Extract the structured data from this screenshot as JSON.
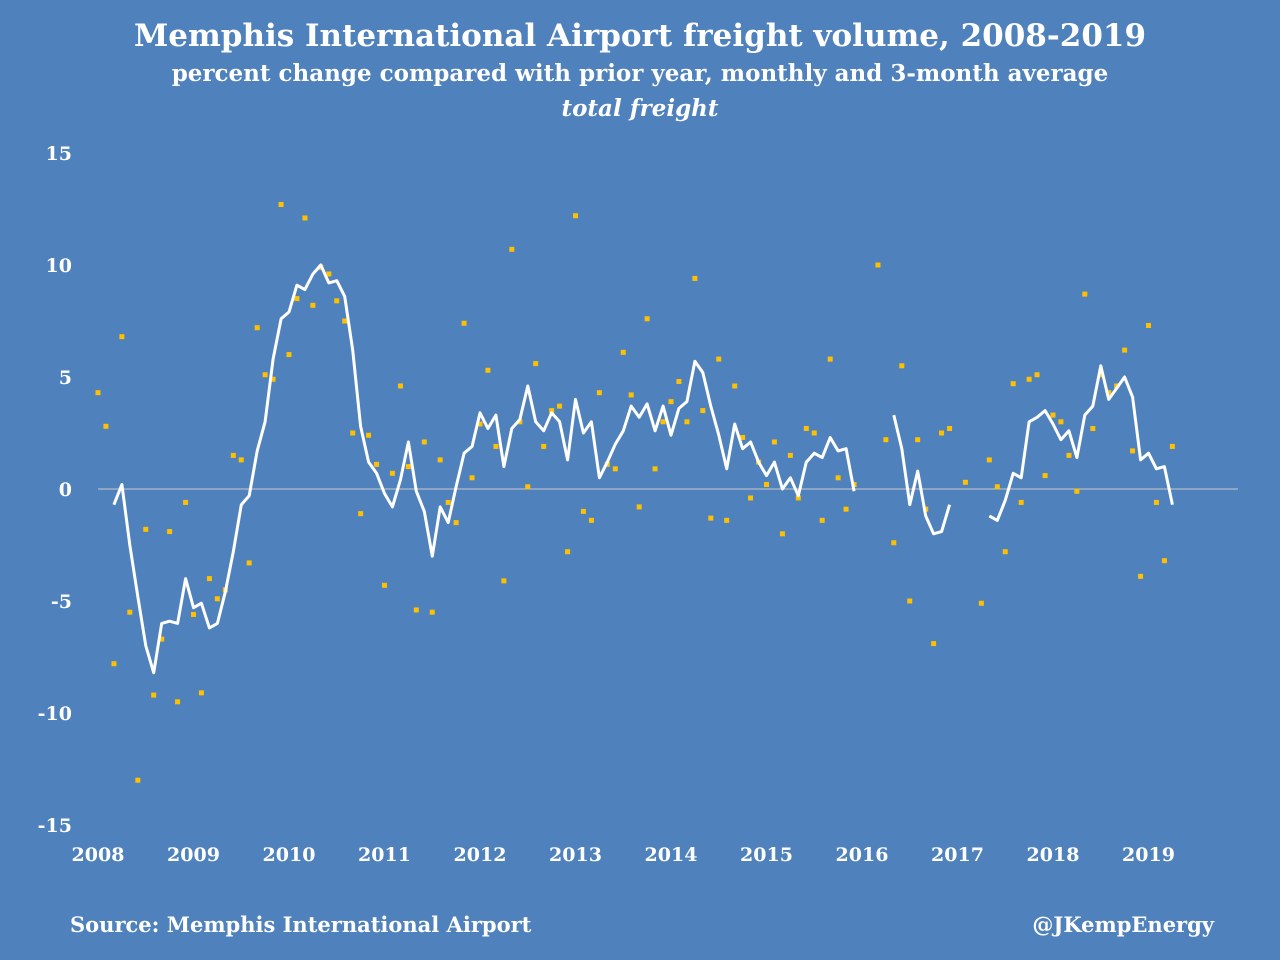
{
  "chart_data": {
    "type": "line",
    "title": "Memphis International Airport freight volume, 2008-2019",
    "subtitle": "percent change compared with prior year, monthly and 3-month average",
    "subtitle2": "total freight",
    "xlabel": "",
    "ylabel": "",
    "x_ticks": [
      "2008",
      "2009",
      "2010",
      "2011",
      "2012",
      "2013",
      "2014",
      "2015",
      "2016",
      "2017",
      "2018",
      "2019"
    ],
    "y_ticks": [
      "15",
      "10",
      "5",
      "0",
      "-5",
      "-10",
      "-15"
    ],
    "xlim": [
      2008,
      2019.75
    ],
    "ylim": [
      -15,
      15
    ],
    "grid": false,
    "colors": {
      "background": "#4f81bd",
      "line": "#ffffff",
      "points": "#ffc000",
      "zero_line": "#c9c9c9"
    },
    "series": [
      {
        "type": "scatter",
        "points": [
          [
            2008.0,
            4.3
          ],
          [
            2008.083,
            2.8
          ],
          [
            2008.167,
            -7.8
          ],
          [
            2008.25,
            6.8
          ],
          [
            2008.333,
            -5.5
          ],
          [
            2008.417,
            -13.0
          ],
          [
            2008.5,
            -1.8
          ],
          [
            2008.583,
            -9.2
          ],
          [
            2008.667,
            -6.7
          ],
          [
            2008.75,
            -1.9
          ],
          [
            2008.833,
            -9.5
          ],
          [
            2008.917,
            -0.6
          ],
          [
            2009.0,
            -5.6
          ],
          [
            2009.083,
            -9.1
          ],
          [
            2009.167,
            -4.0
          ],
          [
            2009.25,
            -4.9
          ],
          [
            2009.333,
            -4.5
          ],
          [
            2009.417,
            1.5
          ],
          [
            2009.5,
            1.3
          ],
          [
            2009.583,
            -3.3
          ],
          [
            2009.667,
            7.2
          ],
          [
            2009.75,
            5.1
          ],
          [
            2009.833,
            4.9
          ],
          [
            2009.917,
            12.7
          ],
          [
            2010.0,
            6.0
          ],
          [
            2010.083,
            8.5
          ],
          [
            2010.167,
            12.1
          ],
          [
            2010.25,
            8.2
          ],
          [
            2010.333,
            9.9
          ],
          [
            2010.417,
            9.6
          ],
          [
            2010.5,
            8.4
          ],
          [
            2010.583,
            7.5
          ],
          [
            2010.667,
            2.5
          ],
          [
            2010.75,
            -1.1
          ],
          [
            2010.833,
            2.4
          ],
          [
            2010.917,
            1.1
          ],
          [
            2011.0,
            -4.3
          ],
          [
            2011.083,
            0.7
          ],
          [
            2011.167,
            4.6
          ],
          [
            2011.25,
            1.0
          ],
          [
            2011.333,
            -5.4
          ],
          [
            2011.417,
            2.1
          ],
          [
            2011.5,
            -5.5
          ],
          [
            2011.583,
            1.3
          ],
          [
            2011.667,
            -0.6
          ],
          [
            2011.75,
            -1.5
          ],
          [
            2011.833,
            7.4
          ],
          [
            2011.917,
            0.5
          ],
          [
            2012.0,
            2.9
          ],
          [
            2012.083,
            5.3
          ],
          [
            2012.167,
            1.9
          ],
          [
            2012.25,
            -4.1
          ],
          [
            2012.333,
            10.7
          ],
          [
            2012.417,
            3.0
          ],
          [
            2012.5,
            0.1
          ],
          [
            2012.583,
            5.6
          ],
          [
            2012.667,
            1.9
          ],
          [
            2012.75,
            3.5
          ],
          [
            2012.833,
            3.7
          ],
          [
            2012.917,
            -2.8
          ],
          [
            2013.0,
            12.2
          ],
          [
            2013.083,
            -1.0
          ],
          [
            2013.167,
            -1.4
          ],
          [
            2013.25,
            4.3
          ],
          [
            2013.333,
            1.1
          ],
          [
            2013.417,
            0.9
          ],
          [
            2013.5,
            6.1
          ],
          [
            2013.583,
            4.2
          ],
          [
            2013.667,
            -0.8
          ],
          [
            2013.75,
            7.6
          ],
          [
            2013.833,
            0.9
          ],
          [
            2013.917,
            3.0
          ],
          [
            2014.0,
            3.9
          ],
          [
            2014.083,
            4.8
          ],
          [
            2014.167,
            3.0
          ],
          [
            2014.25,
            9.4
          ],
          [
            2014.333,
            3.5
          ],
          [
            2014.417,
            -1.3
          ],
          [
            2014.5,
            5.8
          ],
          [
            2014.583,
            -1.4
          ],
          [
            2014.667,
            4.6
          ],
          [
            2014.75,
            2.3
          ],
          [
            2014.833,
            -0.4
          ],
          [
            2014.917,
            1.2
          ],
          [
            2015.0,
            0.2
          ],
          [
            2015.083,
            2.1
          ],
          [
            2015.167,
            -2.0
          ],
          [
            2015.25,
            1.5
          ],
          [
            2015.333,
            -0.4
          ],
          [
            2015.417,
            2.7
          ],
          [
            2015.5,
            2.5
          ],
          [
            2015.583,
            -1.4
          ],
          [
            2015.667,
            5.8
          ],
          [
            2015.75,
            0.5
          ],
          [
            2015.833,
            -0.9
          ],
          [
            2015.917,
            0.2
          ],
          [
            2016.167,
            10.0
          ],
          [
            2016.25,
            2.2
          ],
          [
            2016.333,
            -2.4
          ],
          [
            2016.417,
            5.5
          ],
          [
            2016.5,
            -5.0
          ],
          [
            2016.583,
            2.2
          ],
          [
            2016.667,
            -0.9
          ],
          [
            2016.75,
            -6.9
          ],
          [
            2016.833,
            2.5
          ],
          [
            2016.917,
            2.7
          ],
          [
            2017.083,
            0.3
          ],
          [
            2017.25,
            -5.1
          ],
          [
            2017.333,
            1.3
          ],
          [
            2017.417,
            0.1
          ],
          [
            2017.5,
            -2.8
          ],
          [
            2017.583,
            4.7
          ],
          [
            2017.667,
            -0.6
          ],
          [
            2017.75,
            4.9
          ],
          [
            2017.833,
            5.1
          ],
          [
            2017.917,
            0.6
          ],
          [
            2018.0,
            3.3
          ],
          [
            2018.083,
            3.0
          ],
          [
            2018.167,
            1.5
          ],
          [
            2018.25,
            -0.1
          ],
          [
            2018.333,
            8.7
          ],
          [
            2018.417,
            2.7
          ],
          [
            2018.5,
            5.1
          ],
          [
            2018.583,
            4.3
          ],
          [
            2018.667,
            4.6
          ],
          [
            2018.75,
            6.2
          ],
          [
            2018.833,
            1.7
          ],
          [
            2018.917,
            -3.9
          ],
          [
            2019.0,
            7.3
          ],
          [
            2019.083,
            -0.6
          ],
          [
            2019.167,
            -3.2
          ],
          [
            2019.25,
            1.9
          ]
        ]
      },
      {
        "type": "line",
        "segments": [
          [
            [
              2008.167,
              -0.7
            ],
            [
              2008.25,
              0.2
            ],
            [
              2008.333,
              -2.5
            ],
            [
              2008.417,
              -4.8
            ],
            [
              2008.5,
              -7.0
            ],
            [
              2008.583,
              -8.2
            ],
            [
              2008.667,
              -6.0
            ],
            [
              2008.75,
              -5.9
            ],
            [
              2008.833,
              -6.0
            ],
            [
              2008.917,
              -4.0
            ],
            [
              2009.0,
              -5.3
            ],
            [
              2009.083,
              -5.1
            ],
            [
              2009.167,
              -6.2
            ],
            [
              2009.25,
              -6.0
            ],
            [
              2009.333,
              -4.6
            ],
            [
              2009.417,
              -2.8
            ],
            [
              2009.5,
              -0.7
            ],
            [
              2009.583,
              -0.3
            ],
            [
              2009.667,
              1.7
            ],
            [
              2009.75,
              3.0
            ],
            [
              2009.833,
              5.8
            ],
            [
              2009.917,
              7.6
            ],
            [
              2010.0,
              7.9
            ],
            [
              2010.083,
              9.1
            ],
            [
              2010.167,
              8.9
            ],
            [
              2010.25,
              9.6
            ],
            [
              2010.333,
              10.0
            ],
            [
              2010.417,
              9.2
            ],
            [
              2010.5,
              9.3
            ],
            [
              2010.583,
              8.6
            ],
            [
              2010.667,
              6.2
            ],
            [
              2010.75,
              2.8
            ],
            [
              2010.833,
              1.2
            ],
            [
              2010.917,
              0.7
            ],
            [
              2011.0,
              -0.2
            ],
            [
              2011.083,
              -0.8
            ],
            [
              2011.167,
              0.4
            ],
            [
              2011.25,
              2.1
            ],
            [
              2011.333,
              -0.1
            ],
            [
              2011.417,
              -1.0
            ],
            [
              2011.5,
              -3.0
            ],
            [
              2011.583,
              -0.8
            ],
            [
              2011.667,
              -1.5
            ],
            [
              2011.75,
              0.1
            ],
            [
              2011.833,
              1.6
            ],
            [
              2011.917,
              1.9
            ],
            [
              2012.0,
              3.4
            ],
            [
              2012.083,
              2.7
            ],
            [
              2012.167,
              3.3
            ],
            [
              2012.25,
              1.0
            ],
            [
              2012.333,
              2.7
            ],
            [
              2012.417,
              3.1
            ],
            [
              2012.5,
              4.6
            ],
            [
              2012.583,
              3.0
            ],
            [
              2012.667,
              2.6
            ],
            [
              2012.75,
              3.4
            ],
            [
              2012.833,
              3.0
            ],
            [
              2012.917,
              1.3
            ],
            [
              2013.0,
              4.0
            ],
            [
              2013.083,
              2.5
            ],
            [
              2013.167,
              3.0
            ],
            [
              2013.25,
              0.5
            ],
            [
              2013.333,
              1.2
            ],
            [
              2013.417,
              2.0
            ],
            [
              2013.5,
              2.6
            ],
            [
              2013.583,
              3.7
            ],
            [
              2013.667,
              3.2
            ],
            [
              2013.75,
              3.8
            ],
            [
              2013.833,
              2.6
            ],
            [
              2013.917,
              3.7
            ],
            [
              2014.0,
              2.4
            ],
            [
              2014.083,
              3.6
            ],
            [
              2014.167,
              3.9
            ],
            [
              2014.25,
              5.7
            ],
            [
              2014.333,
              5.2
            ],
            [
              2014.417,
              3.7
            ],
            [
              2014.5,
              2.4
            ],
            [
              2014.583,
              0.9
            ],
            [
              2014.667,
              2.9
            ],
            [
              2014.75,
              1.8
            ],
            [
              2014.833,
              2.1
            ],
            [
              2014.917,
              1.2
            ],
            [
              2015.0,
              0.6
            ],
            [
              2015.083,
              1.2
            ],
            [
              2015.167,
              0.0
            ],
            [
              2015.25,
              0.5
            ],
            [
              2015.333,
              -0.3
            ],
            [
              2015.417,
              1.2
            ],
            [
              2015.5,
              1.6
            ],
            [
              2015.583,
              1.4
            ],
            [
              2015.667,
              2.3
            ],
            [
              2015.75,
              1.7
            ],
            [
              2015.833,
              1.8
            ],
            [
              2015.917,
              -0.1
            ]
          ],
          [
            [
              2016.333,
              3.3
            ],
            [
              2016.417,
              1.8
            ],
            [
              2016.5,
              -0.7
            ],
            [
              2016.583,
              0.8
            ],
            [
              2016.667,
              -1.2
            ],
            [
              2016.75,
              -2.0
            ],
            [
              2016.833,
              -1.9
            ],
            [
              2016.917,
              -0.7
            ]
          ],
          [
            [
              2017.333,
              -1.2
            ],
            [
              2017.417,
              -1.4
            ],
            [
              2017.5,
              -0.5
            ],
            [
              2017.583,
              0.7
            ],
            [
              2017.667,
              0.5
            ],
            [
              2017.75,
              3.0
            ],
            [
              2017.833,
              3.2
            ],
            [
              2017.917,
              3.5
            ],
            [
              2018.0,
              2.9
            ],
            [
              2018.083,
              2.2
            ],
            [
              2018.167,
              2.6
            ],
            [
              2018.25,
              1.4
            ],
            [
              2018.333,
              3.3
            ],
            [
              2018.417,
              3.7
            ],
            [
              2018.5,
              5.5
            ],
            [
              2018.583,
              4.0
            ],
            [
              2018.667,
              4.5
            ],
            [
              2018.75,
              5.0
            ],
            [
              2018.833,
              4.1
            ],
            [
              2018.917,
              1.3
            ],
            [
              2019.0,
              1.6
            ],
            [
              2019.083,
              0.9
            ],
            [
              2019.167,
              1.0
            ],
            [
              2019.25,
              -0.7
            ]
          ]
        ]
      }
    ]
  },
  "footer": {
    "source": "Source: Memphis International Airport",
    "credit": "@JKempEnergy"
  }
}
